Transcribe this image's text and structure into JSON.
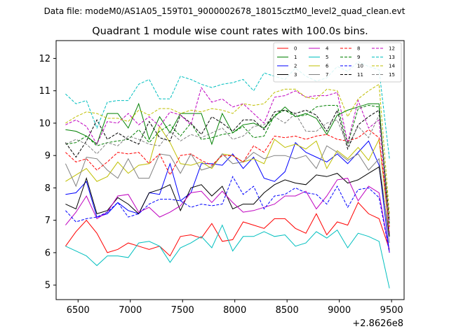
{
  "header": {
    "datafile": "Data file: modeM0/AS1A05_159T01_9000002678_18015cztM0_level2_quad_clean.evt",
    "title": "Quadrant 1 module wise count rates with 100.0s bins."
  },
  "chart_data": {
    "type": "line",
    "title": "Quadrant 1 module wise count rates with 100.0s bins.",
    "x_offset_label": "+2.8626e8",
    "xlabel": "",
    "ylabel": "",
    "xlim": [
      6290,
      9620
    ],
    "ylim": [
      4.55,
      12.55
    ],
    "xticks": [
      6500,
      7000,
      7500,
      8000,
      8500,
      9000,
      9500
    ],
    "yticks": [
      5,
      6,
      7,
      8,
      9,
      10,
      11,
      12
    ],
    "legend_position": "top-right",
    "x": [
      6380,
      6480,
      6580,
      6680,
      6780,
      6880,
      6980,
      7080,
      7180,
      7280,
      7380,
      7480,
      7580,
      7680,
      7780,
      7880,
      7980,
      8080,
      8180,
      8280,
      8380,
      8480,
      8580,
      8680,
      8780,
      8880,
      8980,
      9080,
      9180,
      9280,
      9380,
      9480
    ],
    "series": [
      {
        "name": "0",
        "color": "#ff0000",
        "dash": "solid",
        "values": [
          6.2,
          6.65,
          7.0,
          6.6,
          6.0,
          6.1,
          6.3,
          6.2,
          6.1,
          6.2,
          5.9,
          6.5,
          6.55,
          6.45,
          6.9,
          6.35,
          6.4,
          6.95,
          6.85,
          6.75,
          7.05,
          7.05,
          6.75,
          6.6,
          7.2,
          6.55,
          6.95,
          6.85,
          7.55,
          7.2,
          7.05,
          6.1
        ]
      },
      {
        "name": "1",
        "color": "#008000",
        "dash": "solid",
        "values": [
          9.8,
          9.75,
          9.6,
          9.35,
          10.3,
          10.3,
          9.85,
          10.6,
          9.5,
          10.2,
          9.7,
          10.3,
          10.3,
          10.3,
          9.35,
          10.3,
          9.7,
          9.95,
          10.0,
          9.85,
          10.2,
          10.5,
          10.2,
          10.3,
          10.15,
          9.65,
          10.25,
          10.4,
          10.5,
          10.6,
          10.6,
          6.5
        ]
      },
      {
        "name": "2",
        "color": "#0000ff",
        "dash": "solid",
        "values": [
          7.8,
          7.85,
          8.2,
          7.1,
          7.2,
          7.55,
          7.3,
          7.2,
          7.85,
          7.8,
          8.75,
          7.6,
          7.85,
          8.75,
          8.75,
          8.7,
          9.05,
          8.6,
          8.95,
          8.3,
          8.2,
          8.5,
          9.4,
          9.1,
          8.95,
          8.8,
          9.05,
          8.75,
          9.1,
          9.45,
          8.7,
          6.0
        ]
      },
      {
        "name": "3",
        "color": "#000000",
        "dash": "solid",
        "values": [
          7.5,
          7.35,
          8.3,
          7.2,
          7.3,
          7.7,
          7.5,
          7.2,
          7.85,
          7.95,
          8.1,
          7.3,
          8.0,
          8.1,
          7.75,
          8.05,
          7.35,
          7.5,
          7.5,
          7.85,
          8.1,
          8.25,
          8.15,
          8.1,
          8.4,
          8.35,
          8.45,
          8.15,
          8.25,
          8.45,
          8.65,
          6.5
        ]
      },
      {
        "name": "4",
        "color": "#bf00bf",
        "dash": "solid",
        "values": [
          6.85,
          7.25,
          7.75,
          7.05,
          7.25,
          7.75,
          7.8,
          7.25,
          7.4,
          7.1,
          7.25,
          7.45,
          7.85,
          7.9,
          7.55,
          7.9,
          7.55,
          7.25,
          7.3,
          7.4,
          7.5,
          7.75,
          7.75,
          7.9,
          7.35,
          7.75,
          8.25,
          8.3,
          7.6,
          8.05,
          7.85,
          6.0
        ]
      },
      {
        "name": "5",
        "color": "#00bfbf",
        "dash": "solid",
        "values": [
          6.2,
          6.05,
          5.9,
          5.6,
          5.9,
          5.9,
          5.85,
          6.3,
          6.35,
          6.2,
          5.7,
          6.15,
          6.3,
          6.5,
          6.15,
          6.85,
          6.05,
          6.5,
          6.5,
          6.65,
          6.5,
          6.55,
          6.2,
          6.3,
          6.65,
          6.45,
          6.7,
          6.15,
          6.6,
          6.5,
          6.35,
          4.9
        ]
      },
      {
        "name": "6",
        "color": "#bfbf00",
        "dash": "solid",
        "values": [
          8.2,
          8.4,
          8.6,
          8.2,
          8.35,
          8.8,
          8.45,
          8.7,
          8.75,
          9.9,
          9.4,
          8.75,
          8.7,
          8.8,
          8.6,
          9.05,
          9.0,
          8.8,
          8.9,
          8.75,
          9.5,
          9.25,
          9.35,
          9.2,
          9.45,
          8.6,
          9.15,
          8.9,
          9.25,
          8.85,
          9.5,
          6.6
        ]
      },
      {
        "name": "7",
        "color": "#808080",
        "dash": "solid",
        "values": [
          8.75,
          8.05,
          8.95,
          8.9,
          8.55,
          8.3,
          8.9,
          8.3,
          8.3,
          9.05,
          9.0,
          8.45,
          9.05,
          8.55,
          8.65,
          9.05,
          8.75,
          8.8,
          9.1,
          8.9,
          9.0,
          9.0,
          8.9,
          9.0,
          8.6,
          9.3,
          9.1,
          8.85,
          9.05,
          8.55,
          8.9,
          6.3
        ]
      },
      {
        "name": "8",
        "color": "#ff0000",
        "dash": "dashed",
        "values": [
          9.1,
          8.8,
          8.9,
          8.55,
          8.8,
          9.1,
          9.05,
          9.1,
          8.75,
          9.05,
          8.4,
          9.0,
          9.05,
          8.85,
          8.7,
          9.0,
          9.0,
          8.8,
          9.3,
          9.1,
          9.6,
          9.55,
          9.6,
          9.5,
          9.6,
          9.65,
          9.5,
          9.45,
          9.55,
          9.8,
          9.55,
          6.8
        ]
      },
      {
        "name": "9",
        "color": "#008000",
        "dash": "dashed",
        "values": [
          9.35,
          9.4,
          9.6,
          9.3,
          9.4,
          9.45,
          9.5,
          9.8,
          9.4,
          9.75,
          9.95,
          9.6,
          10.0,
          9.5,
          9.55,
          9.65,
          9.7,
          9.9,
          9.55,
          9.6,
          10.25,
          10.4,
          10.2,
          10.25,
          10.5,
          10.55,
          10.55,
          9.35,
          10.45,
          10.55,
          10.5,
          6.9
        ]
      },
      {
        "name": "10",
        "color": "#0000ff",
        "dash": "dashed",
        "values": [
          7.3,
          6.95,
          7.05,
          7.1,
          7.25,
          7.55,
          7.1,
          7.2,
          7.5,
          7.65,
          7.65,
          7.6,
          7.4,
          7.5,
          7.45,
          7.5,
          8.35,
          7.8,
          8.05,
          7.35,
          7.75,
          7.8,
          8.0,
          7.85,
          7.8,
          7.5,
          8.05,
          7.4,
          7.95,
          8.0,
          7.7,
          6.0
        ]
      },
      {
        "name": "11",
        "color": "#000000",
        "dash": "dashed",
        "values": [
          9.4,
          8.95,
          9.45,
          10.1,
          9.5,
          9.7,
          9.5,
          9.35,
          10.05,
          9.55,
          9.45,
          10.25,
          10.0,
          9.65,
          10.2,
          10.0,
          9.75,
          10.1,
          10.1,
          9.8,
          10.35,
          10.4,
          10.3,
          10.4,
          10.25,
          9.75,
          10.4,
          9.2,
          9.95,
          10.2,
          10.4,
          7.0
        ]
      },
      {
        "name": "12",
        "color": "#bf00bf",
        "dash": "dashed",
        "values": [
          9.95,
          10.1,
          9.9,
          9.35,
          10.05,
          10.0,
          10.3,
          9.95,
          10.2,
          9.9,
          10.35,
          10.25,
          9.95,
          11.1,
          10.65,
          10.75,
          10.5,
          10.6,
          10.3,
          10.0,
          10.8,
          10.85,
          11.0,
          10.8,
          10.85,
          10.85,
          10.95,
          9.4,
          10.7,
          9.85,
          10.1,
          6.6
        ]
      },
      {
        "name": "13",
        "color": "#00bfbf",
        "dash": "dashed",
        "values": [
          10.9,
          10.6,
          10.7,
          9.85,
          10.65,
          10.7,
          10.7,
          11.2,
          11.35,
          10.75,
          10.75,
          11.45,
          11.35,
          11.2,
          11.1,
          11.2,
          11.25,
          11.35,
          11.0,
          11.55,
          11.45,
          11.35,
          11.7,
          11.45,
          11.3,
          11.4,
          11.75,
          11.6,
          11.9,
          11.75,
          11.65,
          8.9
        ]
      },
      {
        "name": "14",
        "color": "#bfbf00",
        "dash": "dashed",
        "values": [
          10.0,
          10.2,
          10.35,
          10.3,
          10.15,
          10.15,
          10.05,
          10.4,
          10.25,
          10.45,
          10.45,
          10.3,
          10.4,
          10.35,
          10.45,
          10.4,
          10.3,
          10.6,
          10.55,
          10.6,
          10.95,
          11.05,
          11.05,
          10.8,
          10.75,
          11.05,
          11.0,
          10.2,
          10.75,
          11.0,
          11.2,
          7.2
        ]
      },
      {
        "name": "15",
        "color": "#808080",
        "dash": "dashed",
        "values": [
          9.35,
          9.5,
          9.35,
          9.05,
          9.4,
          9.3,
          9.6,
          9.5,
          9.35,
          9.3,
          9.75,
          9.45,
          9.65,
          9.55,
          9.7,
          9.85,
          9.5,
          9.6,
          9.9,
          9.95,
          10.2,
          10.0,
          10.3,
          9.75,
          9.75,
          10.0,
          10.1,
          9.3,
          9.9,
          9.55,
          10.25,
          7.0
        ]
      }
    ]
  }
}
